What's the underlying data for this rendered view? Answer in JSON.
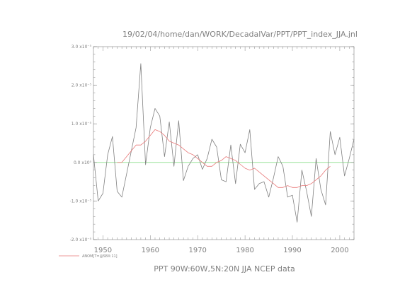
{
  "chart_data": {
    "type": "line",
    "title": "19/02/04/home/dan/WORK/DecadalVar/PPT/PPT_index_JJA.jnl",
    "xlabel": "PPT 90W:60W,5N:20N JJA NCEP data",
    "ylabel": "",
    "xlim": [
      1948,
      2003
    ],
    "ylim": [
      -2e-05,
      3e-05
    ],
    "x_ticks": [
      "1950",
      "1960",
      "1970",
      "1980",
      "1990",
      "2000"
    ],
    "y_ticks": [
      {
        "value": 3e-05,
        "label": "3.0 x10⁻⁵"
      },
      {
        "value": 2e-05,
        "label": "2.0 x10⁻⁵"
      },
      {
        "value": 1e-05,
        "label": "1.0 x10⁻⁵"
      },
      {
        "value": 0.0,
        "label": "0.0 x10⁰"
      },
      {
        "value": -1e-05,
        "label": "-1.0 x10⁻⁵"
      },
      {
        "value": -2e-05,
        "label": "-2.0 x10⁻⁵"
      }
    ],
    "grid": false,
    "series": [
      {
        "role": "anomaly",
        "color": "#808080",
        "x": [
          1948,
          1949,
          1950,
          1951,
          1952,
          1953,
          1954,
          1955,
          1956,
          1957,
          1958,
          1959,
          1960,
          1961,
          1962,
          1963,
          1964,
          1965,
          1966,
          1967,
          1968,
          1969,
          1970,
          1971,
          1972,
          1973,
          1974,
          1975,
          1976,
          1977,
          1978,
          1979,
          1980,
          1981,
          1982,
          1983,
          1984,
          1985,
          1986,
          1987,
          1988,
          1989,
          1990,
          1991,
          1992,
          1993,
          1994,
          1995,
          1996,
          1997,
          1998,
          1999,
          2000,
          2001,
          2002,
          2003
        ],
        "y": [
          2e-06,
          -1e-05,
          -8e-06,
          2e-06,
          6.7e-06,
          -7.5e-06,
          -9e-06,
          -3e-06,
          3e-06,
          9e-06,
          2.56e-05,
          -6e-07,
          9e-06,
          1.4e-05,
          1.2e-05,
          1.5e-06,
          1.05e-05,
          -1e-06,
          1.08e-05,
          -4.7e-06,
          -1e-06,
          1e-06,
          2e-06,
          -1.8e-06,
          1e-06,
          6e-06,
          4e-06,
          -4.5e-06,
          -5e-06,
          4.5e-06,
          -5.5e-06,
          4.7e-06,
          2.5e-06,
          8.5e-06,
          -7e-06,
          -5.5e-06,
          -5e-06,
          -9e-06,
          -4e-06,
          1.5e-06,
          -1e-06,
          -9e-06,
          -8.5e-06,
          -1.55e-05,
          -2e-06,
          -7.5e-06,
          -1.4e-05,
          1e-06,
          -7e-06,
          -1.1e-05,
          8e-06,
          2e-06,
          6.5e-06,
          -3.5e-06,
          1e-06,
          6e-06
        ]
      },
      {
        "role": "smoothed",
        "name": "ANOM[T=@SBX:11]",
        "color": "#e87878",
        "x": [
          1953,
          1954,
          1955,
          1956,
          1957,
          1958,
          1959,
          1960,
          1961,
          1962,
          1963,
          1964,
          1965,
          1966,
          1967,
          1968,
          1969,
          1970,
          1971,
          1972,
          1973,
          1974,
          1975,
          1976,
          1977,
          1978,
          1979,
          1980,
          1981,
          1982,
          1983,
          1984,
          1985,
          1986,
          1987,
          1988,
          1989,
          1990,
          1991,
          1992,
          1993,
          1994,
          1995,
          1996,
          1997,
          1998
        ],
        "y": [
          0.0,
          0.0,
          1.5e-06,
          3e-06,
          4.5e-06,
          4.5e-06,
          5.5e-06,
          7e-06,
          8.5e-06,
          8e-06,
          7e-06,
          5.5e-06,
          5e-06,
          4.5e-06,
          3.5e-06,
          2.5e-06,
          2e-06,
          1e-06,
          0.0,
          -1e-06,
          -1e-06,
          0.0,
          5e-07,
          1.5e-06,
          1e-06,
          5e-07,
          -5e-07,
          -1.5e-06,
          -2e-06,
          -1.5e-06,
          -2.5e-06,
          -3.5e-06,
          -4.5e-06,
          -5.5e-06,
          -6.5e-06,
          -6.5e-06,
          -6e-06,
          -6.5e-06,
          -6.5e-06,
          -6e-06,
          -6e-06,
          -5.5e-06,
          -4.5e-06,
          -3.5e-06,
          -2e-06,
          -1e-06
        ]
      }
    ],
    "zero_line_color": "#88dd88",
    "axis_color": "#808080",
    "legend_position": "bottom-left"
  }
}
